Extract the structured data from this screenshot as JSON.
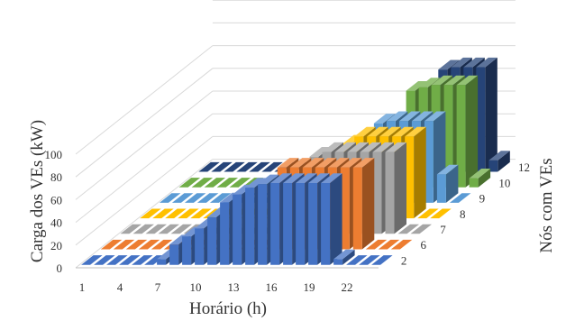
{
  "chart_data": {
    "type": "bar",
    "subtype": "3d-column",
    "title": "",
    "xlabel": "Horário (h)",
    "ylabel": "Carga dos VEs (kW)",
    "zlabel": "Nós com VEs",
    "x": [
      1,
      2,
      3,
      4,
      5,
      6,
      7,
      8,
      9,
      10,
      11,
      12,
      13,
      14,
      15,
      16,
      17,
      18,
      19,
      20,
      21,
      22,
      23,
      24
    ],
    "x_tick_labels": [
      "1",
      "4",
      "7",
      "10",
      "13",
      "16",
      "19",
      "22"
    ],
    "y_tick_labels": [
      "0",
      "20",
      "40",
      "60",
      "80",
      "100"
    ],
    "ylim": [
      0,
      100
    ],
    "grid": true,
    "legend": "none",
    "series": [
      {
        "name": "2",
        "color": "#4472C4",
        "values": [
          0,
          0,
          0,
          0,
          0,
          0,
          5,
          18,
          25,
          32,
          42,
          55,
          62,
          68,
          71,
          72,
          72,
          72,
          72,
          72,
          5,
          0,
          0,
          0
        ]
      },
      {
        "name": "6",
        "color": "#ED7D31",
        "values": [
          0,
          0,
          0,
          0,
          0,
          0,
          0,
          0,
          0,
          0,
          0,
          0,
          0,
          0,
          72,
          72,
          72,
          72,
          72,
          72,
          72,
          0,
          0,
          0
        ]
      },
      {
        "name": "7",
        "color": "#A5A5A5",
        "values": [
          0,
          0,
          0,
          0,
          0,
          0,
          0,
          0,
          0,
          0,
          0,
          0,
          0,
          0,
          0,
          68,
          72,
          72,
          72,
          72,
          72,
          72,
          0,
          0
        ]
      },
      {
        "name": "8",
        "color": "#FFC000",
        "values": [
          0,
          0,
          0,
          0,
          0,
          0,
          0,
          0,
          0,
          0,
          0,
          0,
          0,
          0,
          0,
          0,
          65,
          72,
          72,
          72,
          72,
          72,
          0,
          0
        ]
      },
      {
        "name": "9",
        "color": "#5B9BD5",
        "values": [
          0,
          0,
          0,
          0,
          0,
          0,
          0,
          0,
          0,
          0,
          0,
          0,
          0,
          0,
          0,
          0,
          0,
          70,
          72,
          72,
          72,
          72,
          25,
          0
        ]
      },
      {
        "name": "10",
        "color": "#70AD47",
        "values": [
          0,
          0,
          0,
          0,
          0,
          0,
          0,
          0,
          0,
          0,
          0,
          0,
          0,
          0,
          0,
          0,
          0,
          0,
          85,
          88,
          90,
          90,
          90,
          8
        ]
      },
      {
        "name": "12",
        "color": "#264478",
        "values": [
          0,
          0,
          0,
          0,
          0,
          0,
          0,
          0,
          0,
          0,
          0,
          0,
          0,
          0,
          0,
          0,
          0,
          0,
          0,
          90,
          92,
          92,
          92,
          10
        ]
      }
    ]
  }
}
